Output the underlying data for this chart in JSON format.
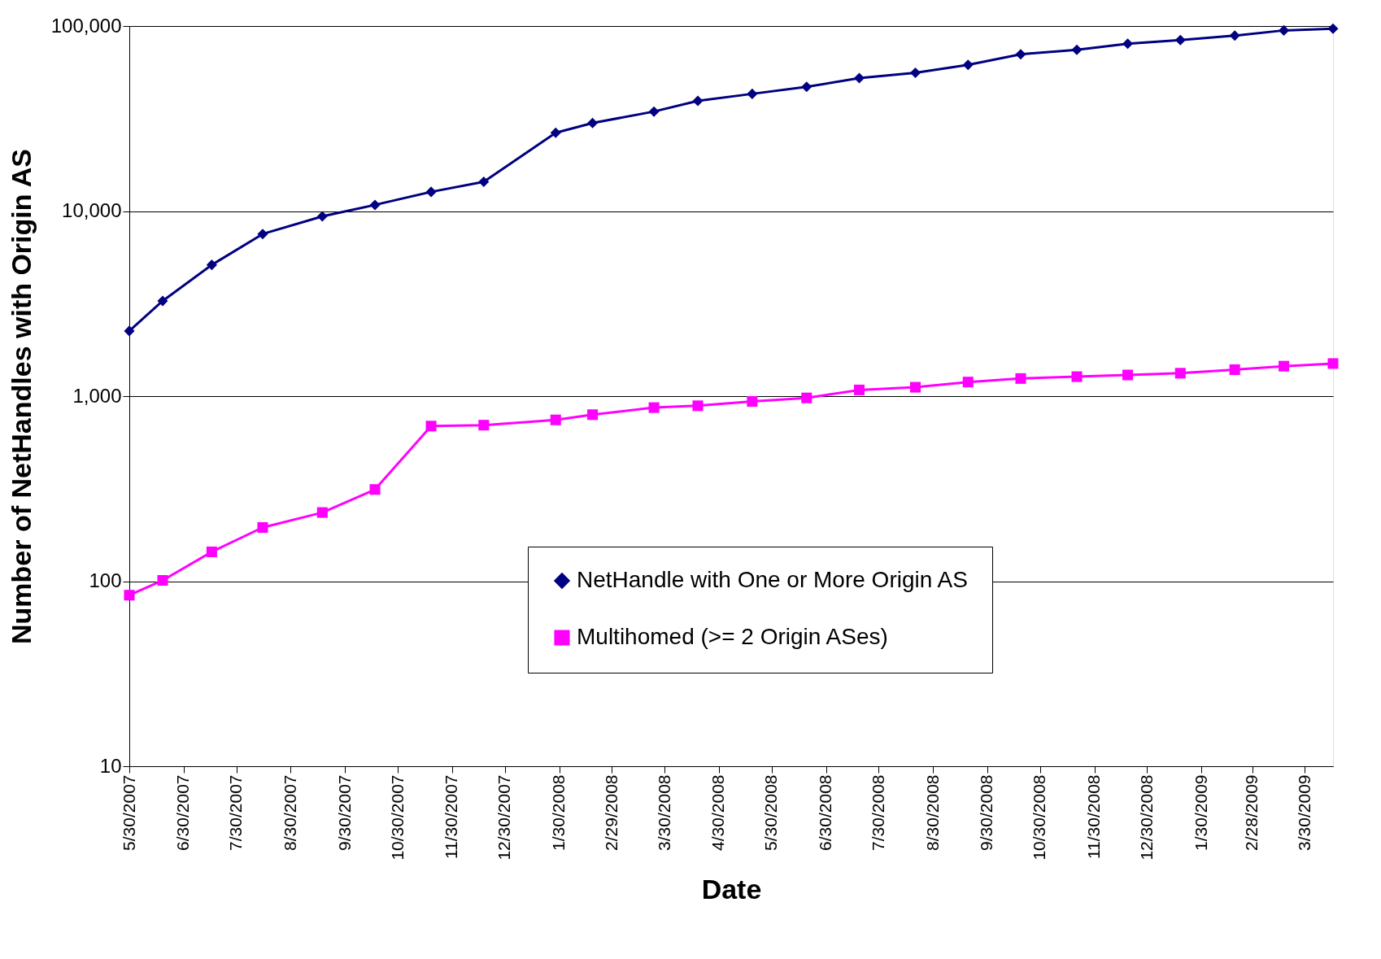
{
  "chart_data": {
    "type": "line",
    "xlabel": "Date",
    "ylabel": "Number of NetHandles with Origin AS",
    "x": [
      "2007-05-30",
      "2007-06-18",
      "2007-07-16",
      "2007-08-14",
      "2007-09-17",
      "2007-10-17",
      "2007-11-18",
      "2007-12-18",
      "2008-01-28",
      "2008-02-18",
      "2008-03-24",
      "2008-04-18",
      "2008-05-19",
      "2008-06-19",
      "2008-07-19",
      "2008-08-20",
      "2008-09-19",
      "2008-10-19",
      "2008-11-20",
      "2008-12-19",
      "2009-01-18",
      "2009-02-18",
      "2009-03-18",
      "2009-04-15"
    ],
    "series": [
      {
        "name": "NetHandle with One or More Origin AS",
        "color": "#000080",
        "marker": "diamond",
        "values": [
          2250,
          3270,
          5120,
          7520,
          9360,
          10800,
          12700,
          14400,
          26500,
          29900,
          34500,
          39400,
          43000,
          46900,
          52300,
          55900,
          61700,
          70400,
          74400,
          80300,
          83900,
          88700,
          94700,
          96800
        ]
      },
      {
        "name": "Multihomed (>= 2 Origin ASes)",
        "color": "#ff00ff",
        "marker": "square",
        "values": [
          84,
          101,
          144,
          195,
          235,
          313,
          689,
          697,
          744,
          794,
          867,
          887,
          936,
          978,
          1080,
          1117,
          1192,
          1245,
          1274,
          1301,
          1330,
          1390,
          1452,
          1500
        ]
      }
    ],
    "log": "y",
    "ylim": [
      10,
      100000
    ],
    "yticks": [
      10,
      100,
      {
        "value": 1000,
        "label": "1,000"
      },
      {
        "value": 10000,
        "label": "10,000"
      },
      {
        "value": 100000,
        "label": "100,000"
      }
    ],
    "xlim": [
      "2007-05-30",
      "2009-04-15"
    ],
    "xticks": [
      {
        "value": "2007-05-30",
        "label": "5/30/2007"
      },
      {
        "value": "2007-06-30",
        "label": "6/30/2007"
      },
      {
        "value": "2007-07-30",
        "label": "7/30/2007"
      },
      {
        "value": "2007-08-30",
        "label": "8/30/2007"
      },
      {
        "value": "2007-09-30",
        "label": "9/30/2007"
      },
      {
        "value": "2007-10-30",
        "label": "10/30/2007"
      },
      {
        "value": "2007-11-30",
        "label": "11/30/2007"
      },
      {
        "value": "2007-12-30",
        "label": "12/30/2007"
      },
      {
        "value": "2008-01-30",
        "label": "1/30/2008"
      },
      {
        "value": "2008-02-29",
        "label": "2/29/2008"
      },
      {
        "value": "2008-03-30",
        "label": "3/30/2008"
      },
      {
        "value": "2008-04-30",
        "label": "4/30/2008"
      },
      {
        "value": "2008-05-30",
        "label": "5/30/2008"
      },
      {
        "value": "2008-06-30",
        "label": "6/30/2008"
      },
      {
        "value": "2008-07-30",
        "label": "7/30/2008"
      },
      {
        "value": "2008-08-30",
        "label": "8/30/2008"
      },
      {
        "value": "2008-09-30",
        "label": "9/30/2008"
      },
      {
        "value": "2008-10-30",
        "label": "10/30/2008"
      },
      {
        "value": "2008-11-30",
        "label": "11/30/2008"
      },
      {
        "value": "2008-12-30",
        "label": "12/30/2008"
      },
      {
        "value": "2009-01-30",
        "label": "1/30/2009"
      },
      {
        "value": "2009-02-28",
        "label": "2/28/2009"
      },
      {
        "value": "2009-03-30",
        "label": "3/30/2009"
      }
    ],
    "grid": "y",
    "legend": "bottom right",
    "line_style": "solid"
  }
}
